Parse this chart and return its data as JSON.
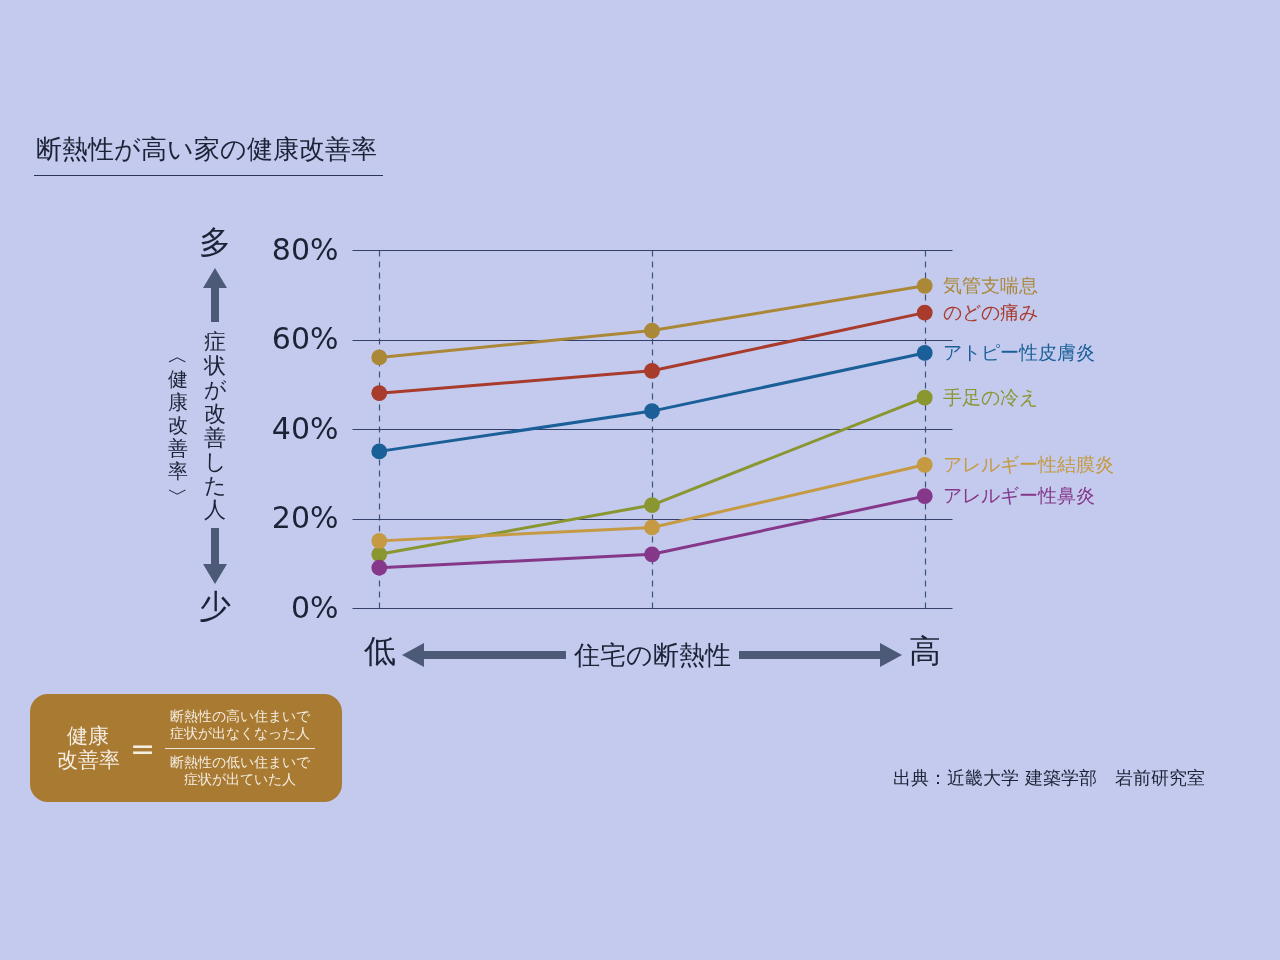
{
  "chart_data": {
    "type": "line",
    "title": "断熱性が高い家の健康改善率",
    "xlabel": "住宅の断熱性",
    "ylabel": "症状が改善した人",
    "categories": [
      "低",
      null,
      "高"
    ],
    "series": [
      {
        "name": "気管支喘息",
        "color": "#ab8838",
        "values": [
          56,
          62,
          72
        ]
      },
      {
        "name": "のどの痛み",
        "color": "#a83b2c",
        "values": [
          48,
          53,
          66
        ]
      },
      {
        "name": "アトピー性皮膚炎",
        "color": "#1b5f98",
        "values": [
          35,
          44,
          57
        ]
      },
      {
        "name": "手足の冷え",
        "color": "#8a9630",
        "values": [
          12,
          23,
          47
        ]
      },
      {
        "name": "アレルギー性結膜炎",
        "color": "#c59a42",
        "values": [
          15,
          18,
          32
        ]
      },
      {
        "name": "アレルギー性鼻炎",
        "color": "#85388a",
        "values": [
          9,
          12,
          25
        ]
      }
    ],
    "ylim": [
      0,
      80
    ],
    "yticks": [
      {
        "value": 0,
        "label": "0%"
      },
      {
        "value": 20,
        "label": "20%"
      },
      {
        "value": 40,
        "label": "40%"
      },
      {
        "value": 60,
        "label": "60%"
      },
      {
        "value": 80,
        "label": "80%"
      }
    ],
    "grid": true,
    "marker": "circle",
    "line_style": "solid",
    "annotations": [
      "多",
      "少",
      "︿健康改善率﹀",
      "健康改善率",
      "=",
      "断熱性の高い住まいで症状が出なくなった人",
      "断熱性の低い住まいで症状が出ていた人",
      "出典：近畿大学 建築学部　岩前研究室"
    ]
  }
}
